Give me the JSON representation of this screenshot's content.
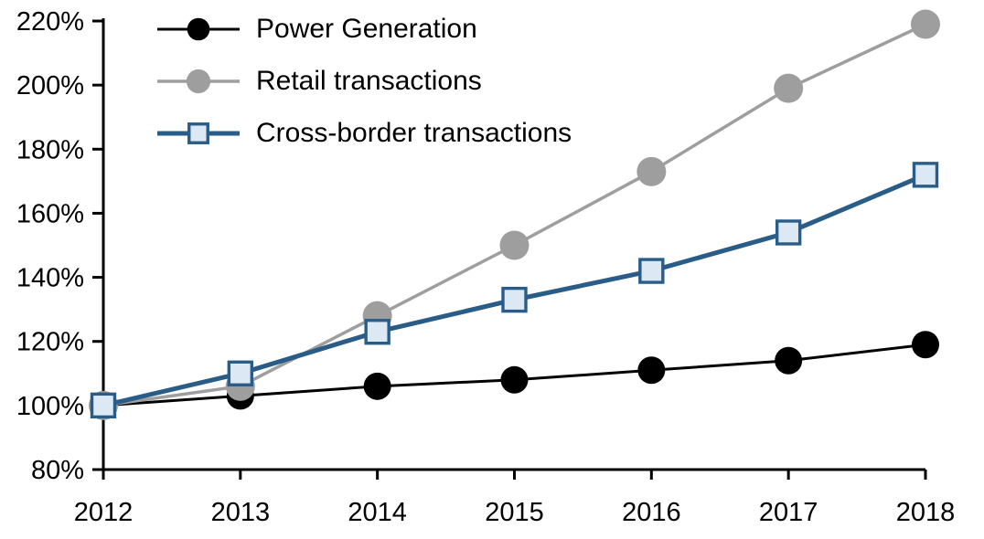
{
  "chart_data": {
    "type": "line",
    "title": "",
    "xlabel": "",
    "ylabel": "",
    "categories": [
      "2012",
      "2013",
      "2014",
      "2015",
      "2016",
      "2017",
      "2018"
    ],
    "series": [
      {
        "name": "Power Generation",
        "values": [
          100,
          103,
          106,
          108,
          111,
          114,
          119
        ],
        "color": "#000000",
        "line_width": 3,
        "marker": "circle",
        "marker_size": 30,
        "marker_fill": "#000000",
        "marker_stroke": "none",
        "marker_stroke_width": 0
      },
      {
        "name": "Retail transactions",
        "values": [
          100,
          106,
          128,
          150,
          173,
          199,
          219
        ],
        "color": "#9E9E9E",
        "line_width": 3.5,
        "marker": "circle",
        "marker_size": 32,
        "marker_fill": "#9E9E9E",
        "marker_stroke": "none",
        "marker_stroke_width": 0
      },
      {
        "name": "Cross-border transactions",
        "values": [
          100,
          110,
          123,
          133,
          142,
          154,
          172
        ],
        "color": "#2A5C88",
        "line_width": 5,
        "marker": "square",
        "marker_size": 25,
        "marker_fill": "#DCE8F4",
        "marker_stroke": "#2A5C88",
        "marker_stroke_width": 3.4
      }
    ],
    "ylim": [
      80,
      220
    ],
    "ytick_step": 20,
    "ytick_labels": [
      "80%",
      "100%",
      "120%",
      "140%",
      "160%",
      "180%",
      "200%",
      "220%"
    ],
    "grid": false,
    "legend_position": "top-left",
    "axis_color": "#000000",
    "background": "#FFFFFF"
  }
}
